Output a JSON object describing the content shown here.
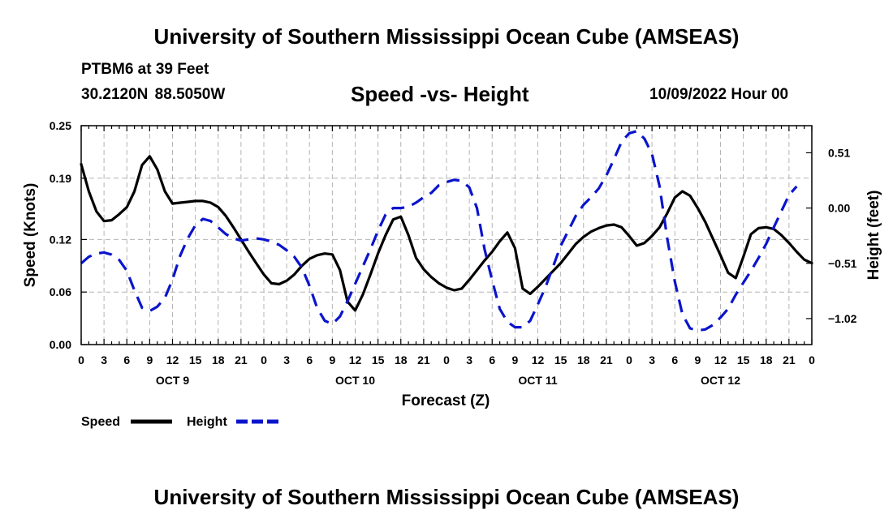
{
  "header": {
    "title": "University of Southern Mississippi Ocean Cube (AMSEAS)",
    "station_name": "PTBM6 at 39 Feet",
    "station_coords": "30.2120N  88.5050W",
    "subtitle": "Speed -vs- Height",
    "date": "10/09/2022 Hour 00"
  },
  "footer": {
    "title": "University of Southern Mississippi Ocean Cube (AMSEAS)"
  },
  "chart_data": {
    "type": "line",
    "title": "Speed -vs- Height",
    "xlabel": "Forecast (Z)",
    "ylabel": "Speed (Knots)",
    "y2label": "Height (feet)",
    "xlim": [
      0,
      96
    ],
    "ylim": [
      0,
      0.25
    ],
    "y2lim": [
      -1.26,
      0.76
    ],
    "grid": true,
    "legend_position": "bottom-left",
    "x_tick_step": 3,
    "x_tick_labels": [
      "0",
      "3",
      "6",
      "9",
      "12",
      "15",
      "18",
      "21",
      "0",
      "3",
      "6",
      "9",
      "12",
      "15",
      "18",
      "21",
      "0",
      "3",
      "6",
      "9",
      "12",
      "15",
      "18",
      "21",
      "0",
      "3",
      "6",
      "9",
      "12",
      "15",
      "18",
      "21",
      "0"
    ],
    "day_labels": [
      {
        "hour": 12,
        "label": "OCT 9"
      },
      {
        "hour": 36,
        "label": "OCT 10"
      },
      {
        "hour": 60,
        "label": "OCT 11"
      },
      {
        "hour": 84,
        "label": "OCT 12"
      }
    ],
    "y_ticks": [
      0.0,
      0.06,
      0.12,
      0.19,
      0.25
    ],
    "y_tick_labels": [
      "0.00",
      "0.06",
      "0.12",
      "0.19",
      "0.25"
    ],
    "y2_ticks": [
      0.51,
      0.0,
      -0.51,
      -1.02
    ],
    "y2_tick_labels": [
      "0.51",
      "0.00",
      "−0.51",
      "−1.02"
    ],
    "series": [
      {
        "name": "Speed",
        "axis": "left",
        "color": "#000000",
        "dashed": false,
        "points": [
          [
            0,
            0.206
          ],
          [
            1,
            0.175
          ],
          [
            2,
            0.152
          ],
          [
            3,
            0.141
          ],
          [
            4,
            0.142
          ],
          [
            5,
            0.149
          ],
          [
            6,
            0.157
          ],
          [
            7,
            0.175
          ],
          [
            8,
            0.205
          ],
          [
            9,
            0.215
          ],
          [
            10,
            0.2
          ],
          [
            11,
            0.175
          ],
          [
            12,
            0.161
          ],
          [
            13,
            0.162
          ],
          [
            14,
            0.163
          ],
          [
            15,
            0.164
          ],
          [
            16,
            0.164
          ],
          [
            17,
            0.162
          ],
          [
            18,
            0.157
          ],
          [
            19,
            0.147
          ],
          [
            20,
            0.134
          ],
          [
            21,
            0.12
          ],
          [
            22,
            0.106
          ],
          [
            23,
            0.093
          ],
          [
            24,
            0.08
          ],
          [
            25,
            0.07
          ],
          [
            26,
            0.069
          ],
          [
            27,
            0.073
          ],
          [
            28,
            0.08
          ],
          [
            29,
            0.09
          ],
          [
            30,
            0.098
          ],
          [
            31,
            0.102
          ],
          [
            32,
            0.104
          ],
          [
            33,
            0.103
          ],
          [
            34,
            0.085
          ],
          [
            35,
            0.049
          ],
          [
            36,
            0.039
          ],
          [
            37,
            0.057
          ],
          [
            38,
            0.08
          ],
          [
            39,
            0.104
          ],
          [
            40,
            0.125
          ],
          [
            41,
            0.143
          ],
          [
            42,
            0.146
          ],
          [
            43,
            0.125
          ],
          [
            44,
            0.099
          ],
          [
            45,
            0.086
          ],
          [
            46,
            0.077
          ],
          [
            47,
            0.07
          ],
          [
            48,
            0.065
          ],
          [
            49,
            0.062
          ],
          [
            50,
            0.064
          ],
          [
            51,
            0.074
          ],
          [
            52,
            0.085
          ],
          [
            53,
            0.096
          ],
          [
            54,
            0.106
          ],
          [
            55,
            0.118
          ],
          [
            56,
            0.128
          ],
          [
            57,
            0.11
          ],
          [
            58,
            0.064
          ],
          [
            59,
            0.058
          ],
          [
            60,
            0.066
          ],
          [
            61,
            0.075
          ],
          [
            62,
            0.084
          ],
          [
            63,
            0.093
          ],
          [
            64,
            0.104
          ],
          [
            65,
            0.115
          ],
          [
            66,
            0.123
          ],
          [
            67,
            0.129
          ],
          [
            68,
            0.133
          ],
          [
            69,
            0.136
          ],
          [
            70,
            0.137
          ],
          [
            71,
            0.134
          ],
          [
            72,
            0.124
          ],
          [
            73,
            0.113
          ],
          [
            74,
            0.116
          ],
          [
            75,
            0.124
          ],
          [
            76,
            0.134
          ],
          [
            77,
            0.15
          ],
          [
            78,
            0.168
          ],
          [
            79,
            0.175
          ],
          [
            80,
            0.17
          ],
          [
            81,
            0.156
          ],
          [
            82,
            0.14
          ],
          [
            83,
            0.121
          ],
          [
            84,
            0.102
          ],
          [
            85,
            0.082
          ],
          [
            86,
            0.076
          ],
          [
            87,
            0.1
          ],
          [
            88,
            0.126
          ],
          [
            89,
            0.133
          ],
          [
            90,
            0.134
          ],
          [
            91,
            0.132
          ],
          [
            92,
            0.125
          ],
          [
            93,
            0.116
          ],
          [
            94,
            0.106
          ],
          [
            95,
            0.097
          ],
          [
            96,
            0.093
          ]
        ]
      },
      {
        "name": "Height",
        "axis": "right",
        "color": "#0a14cc",
        "dashed": true,
        "points": [
          [
            0,
            -0.51
          ],
          [
            1,
            -0.45
          ],
          [
            2,
            -0.42
          ],
          [
            3,
            -0.41
          ],
          [
            4,
            -0.43
          ],
          [
            5,
            -0.48
          ],
          [
            6,
            -0.58
          ],
          [
            7,
            -0.76
          ],
          [
            8,
            -0.92
          ],
          [
            9,
            -0.95
          ],
          [
            10,
            -0.91
          ],
          [
            11,
            -0.83
          ],
          [
            12,
            -0.66
          ],
          [
            13,
            -0.44
          ],
          [
            14,
            -0.28
          ],
          [
            15,
            -0.16
          ],
          [
            16,
            -0.1
          ],
          [
            17,
            -0.12
          ],
          [
            18,
            -0.18
          ],
          [
            19,
            -0.24
          ],
          [
            20,
            -0.28
          ],
          [
            21,
            -0.3
          ],
          [
            22,
            -0.29
          ],
          [
            23,
            -0.28
          ],
          [
            24,
            -0.29
          ],
          [
            25,
            -0.31
          ],
          [
            26,
            -0.34
          ],
          [
            27,
            -0.39
          ],
          [
            28,
            -0.45
          ],
          [
            29,
            -0.55
          ],
          [
            30,
            -0.72
          ],
          [
            31,
            -0.92
          ],
          [
            32,
            -1.04
          ],
          [
            33,
            -1.07
          ],
          [
            34,
            -1.0
          ],
          [
            35,
            -0.86
          ],
          [
            36,
            -0.7
          ],
          [
            37,
            -0.54
          ],
          [
            38,
            -0.38
          ],
          [
            39,
            -0.21
          ],
          [
            40,
            -0.06
          ],
          [
            41,
            0.0
          ],
          [
            42,
            0.0
          ],
          [
            43,
            0.01
          ],
          [
            44,
            0.05
          ],
          [
            45,
            0.1
          ],
          [
            46,
            0.14
          ],
          [
            47,
            0.21
          ],
          [
            48,
            0.24
          ],
          [
            49,
            0.26
          ],
          [
            50,
            0.25
          ],
          [
            51,
            0.19
          ],
          [
            52,
            0.0
          ],
          [
            53,
            -0.38
          ],
          [
            54,
            -0.67
          ],
          [
            55,
            -0.93
          ],
          [
            56,
            -1.05
          ],
          [
            57,
            -1.1
          ],
          [
            58,
            -1.1
          ],
          [
            59,
            -1.04
          ],
          [
            60,
            -0.89
          ],
          [
            61,
            -0.73
          ],
          [
            62,
            -0.54
          ],
          [
            63,
            -0.35
          ],
          [
            64,
            -0.21
          ],
          [
            65,
            -0.07
          ],
          [
            66,
            0.03
          ],
          [
            67,
            0.1
          ],
          [
            68,
            0.18
          ],
          [
            69,
            0.3
          ],
          [
            70,
            0.45
          ],
          [
            71,
            0.61
          ],
          [
            72,
            0.69
          ],
          [
            73,
            0.71
          ],
          [
            74,
            0.64
          ],
          [
            75,
            0.5
          ],
          [
            76,
            0.2
          ],
          [
            77,
            -0.28
          ],
          [
            78,
            -0.68
          ],
          [
            79,
            -0.98
          ],
          [
            80,
            -1.11
          ],
          [
            81,
            -1.13
          ],
          [
            82,
            -1.12
          ],
          [
            83,
            -1.08
          ],
          [
            84,
            -1.01
          ],
          [
            85,
            -0.93
          ],
          [
            86,
            -0.8
          ],
          [
            87,
            -0.69
          ],
          [
            88,
            -0.58
          ],
          [
            89,
            -0.46
          ],
          [
            90,
            -0.33
          ],
          [
            91,
            -0.18
          ],
          [
            92,
            -0.03
          ],
          [
            93,
            0.12
          ],
          [
            94,
            0.2
          ]
        ]
      }
    ]
  }
}
